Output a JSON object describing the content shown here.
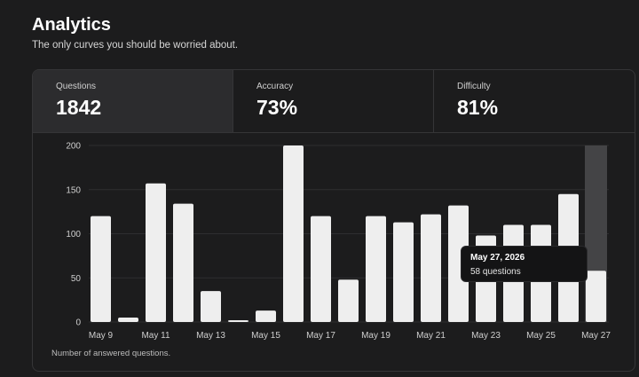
{
  "header": {
    "title": "Analytics",
    "subtitle": "The only curves you should be worried about."
  },
  "stats": [
    {
      "label": "Questions",
      "value": "1842",
      "active": true
    },
    {
      "label": "Accuracy",
      "value": "73%",
      "active": false
    },
    {
      "label": "Difficulty",
      "value": "81%",
      "active": false
    }
  ],
  "footnote": "Number of answered questions.",
  "tooltip": {
    "date": "May 27, 2026",
    "count": "58 questions"
  },
  "colors": {
    "background": "#1c1c1d",
    "bar": "#eeeeee",
    "bar_highlight": "#444446",
    "grid": "#2e2e30"
  },
  "chart_data": {
    "type": "bar",
    "categories": [
      "May 9",
      "May 10",
      "May 11",
      "May 12",
      "May 13",
      "May 14",
      "May 15",
      "May 16",
      "May 17",
      "May 18",
      "May 19",
      "May 20",
      "May 21",
      "May 22",
      "May 23",
      "May 24",
      "May 25",
      "May 26",
      "May 27"
    ],
    "x_tick_labels": [
      "May 9",
      "May 11",
      "May 13",
      "May 15",
      "May 17",
      "May 19",
      "May 21",
      "May 23",
      "May 25",
      "May 27"
    ],
    "values": [
      120,
      5,
      157,
      134,
      35,
      2,
      13,
      200,
      120,
      48,
      120,
      113,
      122,
      132,
      98,
      110,
      110,
      145,
      58
    ],
    "ylim": [
      0,
      200
    ],
    "yticks": [
      0,
      50,
      100,
      150,
      200
    ],
    "highlighted_category": "May 27",
    "grid": true,
    "title": "",
    "xlabel": "",
    "ylabel": ""
  }
}
